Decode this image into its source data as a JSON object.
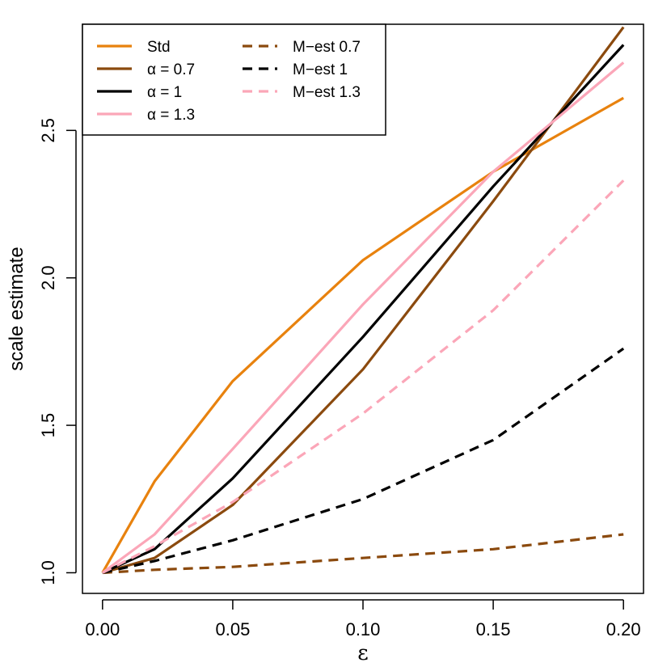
{
  "chart_data": {
    "type": "line",
    "title": "",
    "xlabel": "ε",
    "ylabel": "scale estimate",
    "xlim": [
      -0.0077,
      0.2077
    ],
    "ylim": [
      0.93,
      2.86
    ],
    "x": [
      0.0,
      0.02,
      0.05,
      0.1,
      0.15,
      0.2
    ],
    "x_ticks": [
      0.0,
      0.05,
      0.1,
      0.15,
      0.2
    ],
    "x_tick_labels": [
      "0.00",
      "0.05",
      "0.10",
      "0.15",
      "0.20"
    ],
    "y_ticks": [
      1.0,
      1.5,
      2.0,
      2.5
    ],
    "y_tick_labels": [
      "1.0",
      "1.5",
      "2.0",
      "2.5"
    ],
    "legend_position": "top-left",
    "series": [
      {
        "name": "Std",
        "color": "#E8820E",
        "dash": "solid",
        "values": [
          1.0,
          1.31,
          1.65,
          2.06,
          2.36,
          2.61
        ]
      },
      {
        "name": "α = 0.7",
        "color": "#8B4A0E",
        "dash": "solid",
        "values": [
          1.0,
          1.05,
          1.23,
          1.69,
          2.26,
          2.85
        ]
      },
      {
        "name": "α = 1",
        "color": "#000000",
        "dash": "solid",
        "values": [
          1.0,
          1.08,
          1.32,
          1.8,
          2.31,
          2.79
        ]
      },
      {
        "name": "α = 1.3",
        "color": "#FBA6B8",
        "dash": "solid",
        "values": [
          1.0,
          1.13,
          1.42,
          1.91,
          2.36,
          2.73
        ]
      },
      {
        "name": "M−est 0.7",
        "color": "#8B4A0E",
        "dash": "dashed",
        "values": [
          1.0,
          1.01,
          1.02,
          1.05,
          1.08,
          1.13
        ]
      },
      {
        "name": "M−est 1",
        "color": "#000000",
        "dash": "dashed",
        "values": [
          1.0,
          1.04,
          1.11,
          1.25,
          1.45,
          1.76
        ]
      },
      {
        "name": "M−est 1.3",
        "color": "#FBA6B8",
        "dash": "dashed",
        "values": [
          1.0,
          1.09,
          1.24,
          1.54,
          1.89,
          2.33
        ]
      }
    ]
  }
}
